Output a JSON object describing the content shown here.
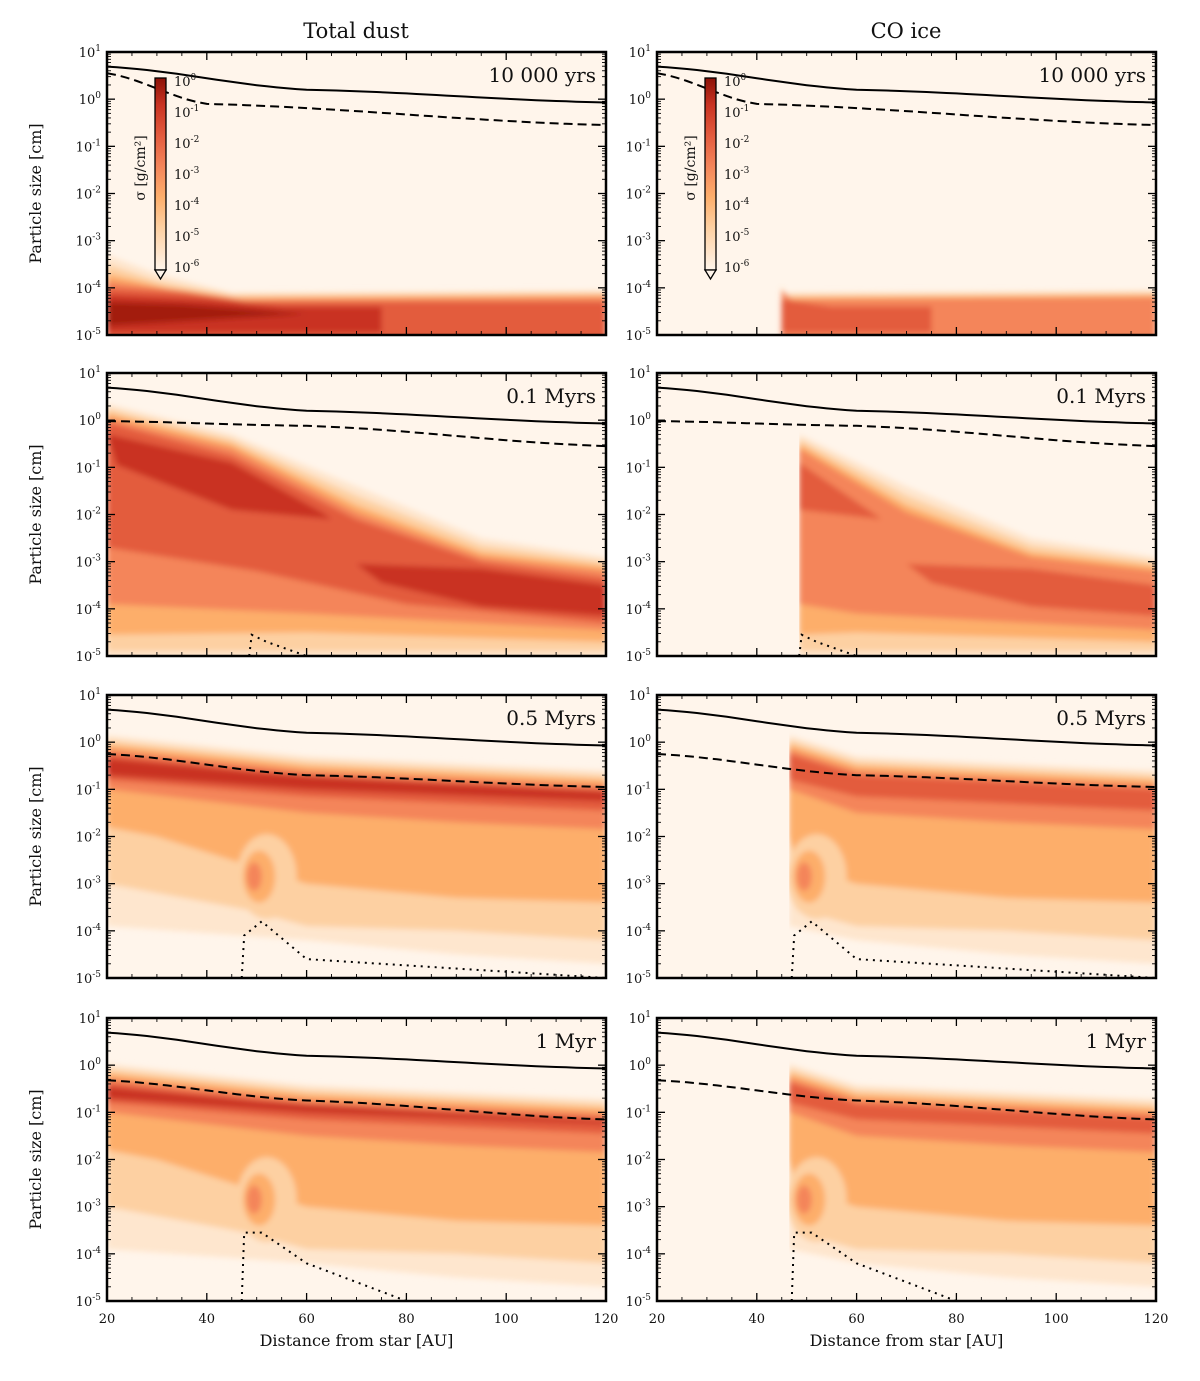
{
  "chart_data": {
    "type": "heatmap",
    "columns": [
      "Total dust",
      "CO ice"
    ],
    "times": [
      "10 000 yrs",
      "0.1 Myrs",
      "0.5 Myrs",
      "1 Myr"
    ],
    "xlabel": "Distance from star [AU]",
    "ylabel": "Particle size [cm]",
    "x_ticks": [
      "20",
      "40",
      "60",
      "80",
      "100",
      "120"
    ],
    "xlim": [
      20,
      120
    ],
    "ylim_log10": [
      -5,
      1
    ],
    "y_ticks": [
      {
        "base": "10",
        "exp": "1"
      },
      {
        "base": "10",
        "exp": "0"
      },
      {
        "base": "10",
        "exp": "-1"
      },
      {
        "base": "10",
        "exp": "-2"
      },
      {
        "base": "10",
        "exp": "-3"
      },
      {
        "base": "10",
        "exp": "-4"
      },
      {
        "base": "10",
        "exp": "-5"
      }
    ],
    "colorbar": {
      "label": "σ [g/cm²]",
      "ticks": [
        {
          "base": "10",
          "exp": "0"
        },
        {
          "base": "10",
          "exp": "-1"
        },
        {
          "base": "10",
          "exp": "-2"
        },
        {
          "base": "10",
          "exp": "-3"
        },
        {
          "base": "10",
          "exp": "-4"
        },
        {
          "base": "10",
          "exp": "-5"
        },
        {
          "base": "10",
          "exp": "-6"
        }
      ],
      "colors": [
        "#fff5eb",
        "#fee6ce",
        "#fdd0a2",
        "#fdae6b",
        "#f4855a",
        "#e35b3e",
        "#c93322",
        "#a31b10"
      ]
    },
    "lines": {
      "solid_log10_size": {
        "10 000 yrs": [
          [
            20,
            0.69
          ],
          [
            60,
            0.2
          ],
          [
            120,
            -0.07
          ]
        ],
        "0.1 Myrs": [
          [
            20,
            0.69
          ],
          [
            60,
            0.2
          ],
          [
            120,
            -0.07
          ]
        ],
        "0.5 Myrs": [
          [
            20,
            0.69
          ],
          [
            60,
            0.2
          ],
          [
            120,
            -0.07
          ]
        ],
        "1 Myr": [
          [
            20,
            0.69
          ],
          [
            60,
            0.2
          ],
          [
            120,
            -0.07
          ]
        ]
      },
      "dashed_log10_size": {
        "10 000 yrs": [
          [
            20,
            0.55
          ],
          [
            40,
            -0.1
          ],
          [
            120,
            -0.55
          ]
        ],
        "0.1 Myrs": [
          [
            20,
            -0.02
          ],
          [
            60,
            -0.12
          ],
          [
            120,
            -0.55
          ]
        ],
        "0.5 Myrs": [
          [
            20,
            -0.25
          ],
          [
            60,
            -0.7
          ],
          [
            120,
            -0.95
          ]
        ],
        "1 Myr": [
          [
            20,
            -0.32
          ],
          [
            60,
            -0.75
          ],
          [
            120,
            -1.15
          ]
        ]
      },
      "dotted_log10_size": {
        "0.1 Myrs": [
          [
            48.5,
            -5
          ],
          [
            49,
            -4.55
          ],
          [
            52,
            -4.7
          ],
          [
            60,
            -5
          ]
        ],
        "0.5 Myrs": [
          [
            47,
            -5
          ],
          [
            47.5,
            -4.1
          ],
          [
            51,
            -3.8
          ],
          [
            60,
            -4.6
          ],
          [
            120,
            -5
          ]
        ],
        "1 Myr": [
          [
            47,
            -5
          ],
          [
            47.5,
            -3.55
          ],
          [
            51,
            -3.55
          ],
          [
            60,
            -4.2
          ],
          [
            80,
            -5
          ],
          [
            120,
            -5
          ]
        ]
      }
    },
    "co_ice_inner_edge_au": {
      "10 000 yrs": 45,
      "0.1 Myrs": 48.5,
      "0.5 Myrs": 46.5,
      "1 Myr": 46.5
    }
  }
}
